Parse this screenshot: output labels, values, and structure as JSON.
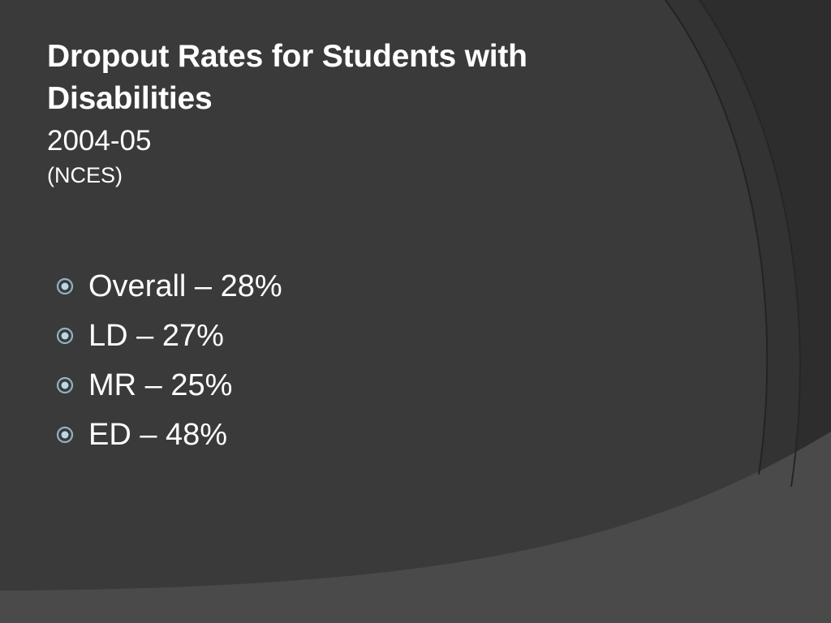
{
  "slide": {
    "title_line1": "Dropout Rates for Students with",
    "title_line2": "Disabilities",
    "year": "2004-05",
    "source": "(NCES)",
    "bullets": [
      {
        "text": "Overall – 28%",
        "icon": "bullet-circle-icon"
      },
      {
        "text": "LD – 27%",
        "icon": "bullet-circle-icon"
      },
      {
        "text": "MR – 25%",
        "icon": "bullet-circle-icon"
      },
      {
        "text": "ED – 48%",
        "icon": "bullet-circle-icon"
      }
    ]
  },
  "colors": {
    "background_dark": "#2c2c2c",
    "background_main": "#3a3a3a",
    "background_light": "#4a4a4a",
    "text": "#ffffff",
    "bullet_ring": "#8fb3c4",
    "bullet_dot": "#bcd6e2"
  }
}
